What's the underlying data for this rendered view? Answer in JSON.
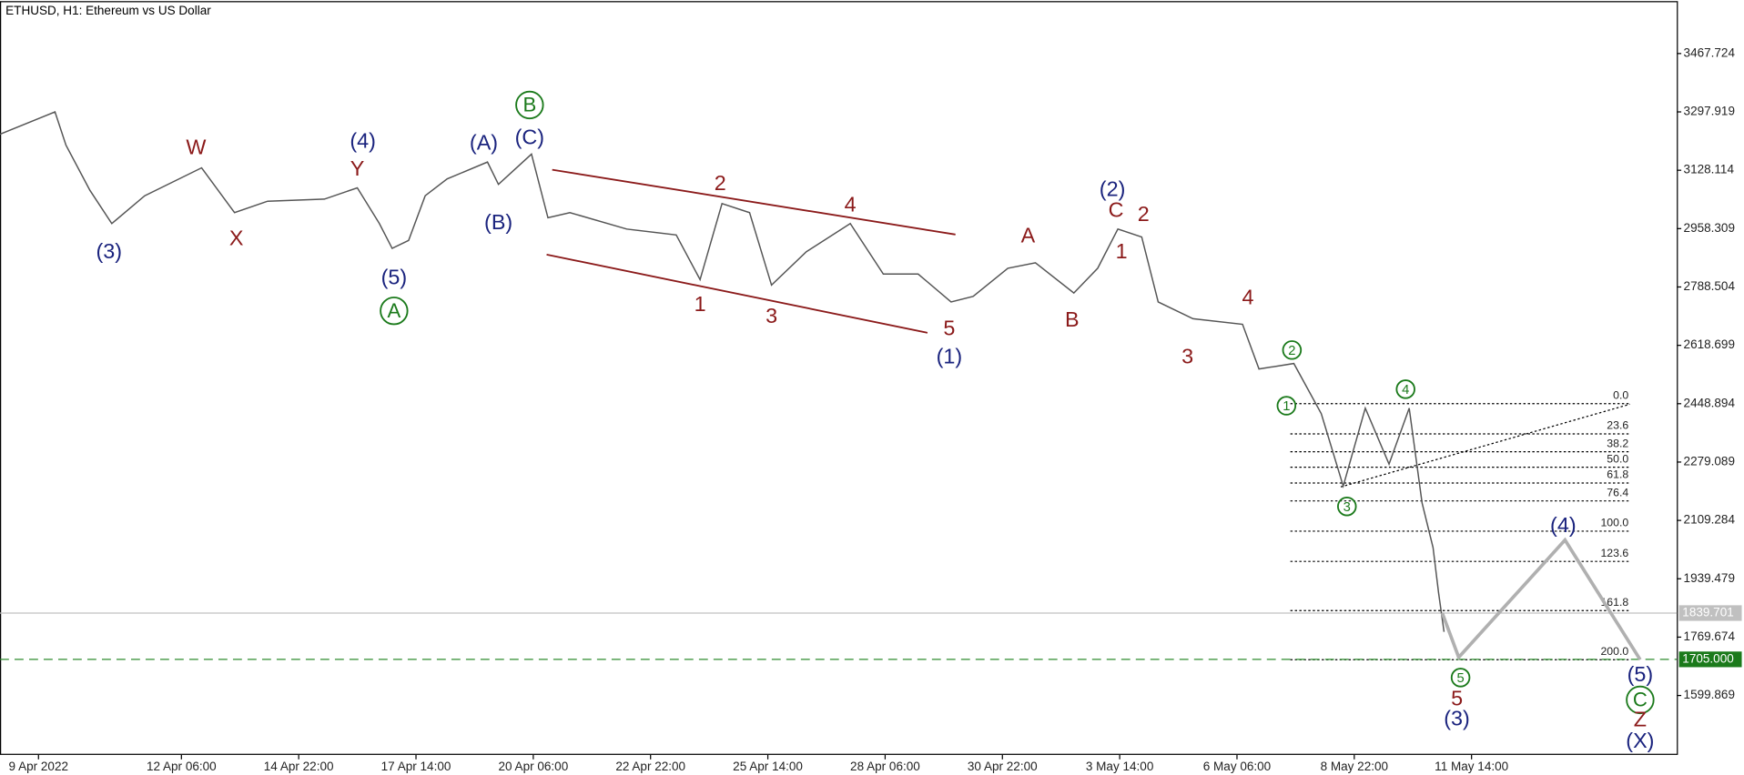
{
  "chart_data": {
    "type": "line",
    "title": "ETHUSD, H1:  Ethereum vs US Dollar",
    "series": [
      {
        "color": "#555555",
        "x": [
          -21,
          9,
          15,
          28,
          40,
          58,
          89,
          107,
          125,
          156,
          174,
          186,
          193,
          202,
          211,
          223,
          245,
          251,
          269,
          278,
          290,
          321,
          348,
          361,
          373,
          388,
          400,
          419,
          443,
          461,
          480,
          498,
          510,
          529,
          544,
          565,
          578,
          589,
          602,
          611,
          630,
          657,
          666,
          685,
          700,
          712,
          724,
          737,
          748,
          755,
          761,
          764,
          767
        ],
        "values": [
          3233,
          3298,
          3201,
          3070,
          2973,
          3054,
          3135,
          3005,
          3038,
          3044,
          3077,
          2973,
          2901,
          2924,
          3054,
          3103,
          3152,
          3087,
          3175,
          2990,
          3005,
          2957,
          2940,
          2810,
          3031,
          3005,
          2794,
          2891,
          2973,
          2826,
          2826,
          2745,
          2761,
          2843,
          2859,
          2771,
          2843,
          2957,
          2934,
          2745,
          2696,
          2680,
          2550,
          2566,
          2420,
          2209,
          2436,
          2273,
          2436,
          2160,
          2030,
          1899,
          1785
        ]
      },
      {
        "color": "#b0b0b0",
        "x": [
          766,
          775,
          833,
          874
        ],
        "values": [
          1840,
          1711,
          2052,
          1704
        ]
      }
    ],
    "xlim": [
      -21,
      894
    ],
    "xticks": [
      {
        "value": 0,
        "label": "9 Apr 2022"
      },
      {
        "value": 78,
        "label": "12 Apr 06:00"
      },
      {
        "value": 142,
        "label": "14 Apr 22:00"
      },
      {
        "value": 206,
        "label": "17 Apr 14:00"
      },
      {
        "value": 270,
        "label": "20 Apr 06:00"
      },
      {
        "value": 334,
        "label": "22 Apr 22:00"
      },
      {
        "value": 398,
        "label": "25 Apr 14:00"
      },
      {
        "value": 462,
        "label": "28 Apr 06:00"
      },
      {
        "value": 526,
        "label": "30 Apr 22:00"
      },
      {
        "value": 590,
        "label": "3 May 14:00"
      },
      {
        "value": 654,
        "label": "6 May 06:00"
      },
      {
        "value": 718,
        "label": "8 May 22:00"
      },
      {
        "value": 782,
        "label": "11 May 14:00"
      }
    ],
    "ylim": [
      1427,
      3617
    ],
    "yticks": [
      3467.724,
      3297.919,
      3128.114,
      2958.309,
      2788.504,
      2618.699,
      2448.894,
      2279.089,
      2109.284,
      1939.479,
      1769.674,
      1599.869
    ],
    "current_price": 1839.701,
    "target_line": {
      "value": 1705,
      "label": "1705.000"
    },
    "fib_levels": [
      {
        "label": "0.0",
        "price": 2449
      },
      {
        "label": "23.6",
        "price": 2361
      },
      {
        "label": "38.2",
        "price": 2309
      },
      {
        "label": "50.0",
        "price": 2264
      },
      {
        "label": "61.8",
        "price": 2218
      },
      {
        "label": "76.4",
        "price": 2166
      },
      {
        "label": "100.0",
        "price": 2078
      },
      {
        "label": "123.6",
        "price": 1990
      },
      {
        "label": "161.8",
        "price": 1847
      },
      {
        "label": "200.0",
        "price": 1704
      }
    ],
    "annotations": [
      {
        "text": "(3)",
        "x": 38.5,
        "y": 2888,
        "color": "#1a237e"
      },
      {
        "text": "W",
        "x": 86,
        "y": 3191,
        "color": "#8b1a1a"
      },
      {
        "text": "X",
        "x": 108,
        "y": 2927,
        "color": "#8b1a1a"
      },
      {
        "text": "(4)",
        "x": 177,
        "y": 3210,
        "color": "#1a237e"
      },
      {
        "text": "Y",
        "x": 174,
        "y": 3129,
        "color": "#8b1a1a"
      },
      {
        "text": "(5)",
        "x": 194,
        "y": 2813,
        "color": "#1a237e"
      },
      {
        "text": "A",
        "x": 194,
        "y": 2719,
        "color": "#1b7a1b",
        "circled": true
      },
      {
        "text": "(A)",
        "x": 243,
        "y": 3204,
        "color": "#1a237e"
      },
      {
        "text": "(B)",
        "x": 251,
        "y": 2973,
        "color": "#1a237e"
      },
      {
        "text": "(C)",
        "x": 268,
        "y": 3220,
        "color": "#1a237e"
      },
      {
        "text": "B",
        "x": 268,
        "y": 3318,
        "color": "#1b7a1b",
        "circled": true
      },
      {
        "text": "2",
        "x": 372,
        "y": 3087,
        "color": "#8b1a1a"
      },
      {
        "text": "4",
        "x": 443,
        "y": 3025,
        "color": "#8b1a1a"
      },
      {
        "text": "1",
        "x": 361,
        "y": 2734,
        "color": "#8b1a1a"
      },
      {
        "text": "3",
        "x": 400,
        "y": 2700,
        "color": "#8b1a1a"
      },
      {
        "text": "5",
        "x": 497,
        "y": 2664,
        "color": "#8b1a1a"
      },
      {
        "text": "(1)",
        "x": 497,
        "y": 2582,
        "color": "#1a237e"
      },
      {
        "text": "A",
        "x": 540,
        "y": 2934,
        "color": "#8b1a1a"
      },
      {
        "text": "B",
        "x": 564,
        "y": 2690,
        "color": "#8b1a1a"
      },
      {
        "text": "(2)",
        "x": 586,
        "y": 3070,
        "color": "#1a237e"
      },
      {
        "text": "C",
        "x": 588,
        "y": 3009,
        "color": "#8b1a1a"
      },
      {
        "text": "2",
        "x": 603,
        "y": 2996,
        "color": "#8b1a1a"
      },
      {
        "text": "1",
        "x": 591,
        "y": 2888,
        "color": "#8b1a1a"
      },
      {
        "text": "3",
        "x": 627,
        "y": 2583,
        "color": "#8b1a1a"
      },
      {
        "text": "4",
        "x": 660,
        "y": 2755,
        "color": "#8b1a1a"
      },
      {
        "text": "2",
        "x": 684,
        "y": 2605,
        "color": "#1b7a1b",
        "circled": true
      },
      {
        "text": "1",
        "x": 681,
        "y": 2443,
        "color": "#1b7a1b",
        "circled": true
      },
      {
        "text": "3",
        "x": 714,
        "y": 2150,
        "color": "#1b7a1b",
        "circled": true
      },
      {
        "text": "4",
        "x": 746,
        "y": 2491,
        "color": "#1b7a1b",
        "circled": true
      },
      {
        "text": "5",
        "x": 776,
        "y": 1652,
        "color": "#1b7a1b",
        "circled": true
      },
      {
        "text": "5",
        "x": 774,
        "y": 1587,
        "color": "#8b1a1a"
      },
      {
        "text": "(3)",
        "x": 774,
        "y": 1529,
        "color": "#1a237e"
      },
      {
        "text": "(4)",
        "x": 832,
        "y": 2091,
        "color": "#1a237e"
      },
      {
        "text": "(5)",
        "x": 874,
        "y": 1657,
        "color": "#1a237e"
      },
      {
        "text": "C",
        "x": 874,
        "y": 1587,
        "color": "#1b7a1b",
        "circled": true
      },
      {
        "text": "Z",
        "x": 874,
        "y": 1526,
        "color": "#8b1a1a"
      },
      {
        "text": "(X)",
        "x": 874,
        "y": 1464,
        "color": "#1a237e"
      }
    ]
  }
}
